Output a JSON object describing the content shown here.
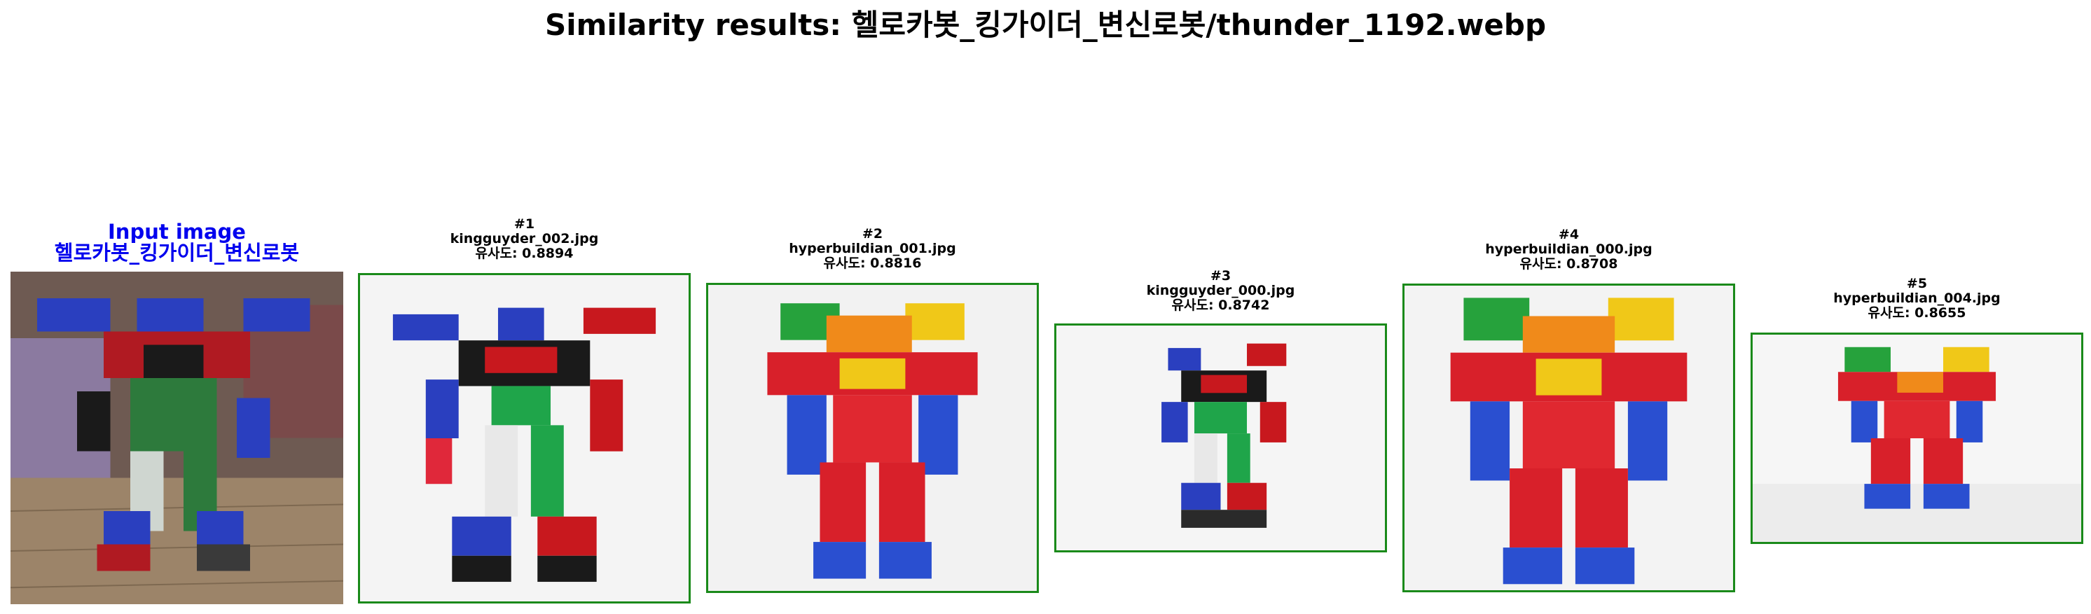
{
  "title": "Similarity results: 헬로카봇_킹가이더_변신로봇/thunder_1192.webp",
  "input": {
    "heading": "Input image",
    "label": "헬로카봇_킹가이더_변신로봇",
    "image_description": "Photo of a transforming robot toy standing on a wooden floor"
  },
  "results": [
    {
      "rank": "#1",
      "filename": "kingguyder_002.jpg",
      "similarity": "유사도: 0.8894",
      "border_color": "#1a8a1a"
    },
    {
      "rank": "#2",
      "filename": "hyperbuildian_001.jpg",
      "similarity": "유사도: 0.8816",
      "border_color": "#1a8a1a"
    },
    {
      "rank": "#3",
      "filename": "kingguyder_000.jpg",
      "similarity": "유사도: 0.8742",
      "border_color": "#1a8a1a"
    },
    {
      "rank": "#4",
      "filename": "hyperbuildian_000.jpg",
      "similarity": "유사도: 0.8708",
      "border_color": "#1a8a1a"
    },
    {
      "rank": "#5",
      "filename": "hyperbuildian_004.jpg",
      "similarity": "유사도: 0.8655",
      "border_color": "#1a8a1a"
    }
  ],
  "colors": {
    "input_caption": "#0000ee",
    "match_border": "#1a8a1a"
  }
}
